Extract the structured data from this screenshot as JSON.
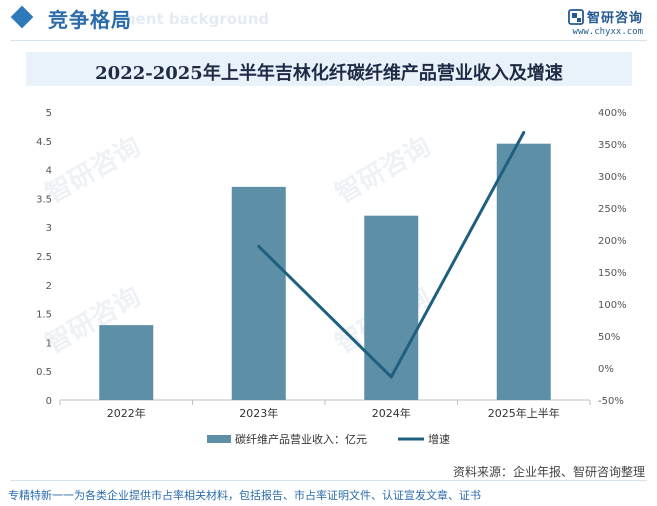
{
  "header": {
    "title": "竞争格局",
    "watermark": "ment background",
    "brand_name": "智研咨询",
    "brand_url": "www.chyxx.com"
  },
  "chart_data": {
    "type": "bar+line",
    "title": "2022-2025年上半年吉林化纤碳纤维产品营业收入及增速",
    "categories": [
      "2022年",
      "2023年",
      "2024年",
      "2025年上半年"
    ],
    "series": [
      {
        "name": "碳纤维产品营业收入：亿元",
        "type": "bar",
        "axis": "left",
        "values": [
          1.3,
          3.7,
          3.2,
          4.45
        ]
      },
      {
        "name": "增速",
        "type": "line",
        "axis": "right",
        "values": [
          null,
          190,
          -14,
          368
        ]
      }
    ],
    "left_axis": {
      "ylim": [
        0,
        5
      ],
      "ticks": [
        "0",
        "0.5",
        "1",
        "1.5",
        "2",
        "2.5",
        "3",
        "3.5",
        "4",
        "4.5",
        "5"
      ]
    },
    "right_axis": {
      "ylim": [
        -50,
        400
      ],
      "ticks": [
        "-50%",
        "0%",
        "50%",
        "100%",
        "150%",
        "200%",
        "250%",
        "300%",
        "350%",
        "400%"
      ]
    },
    "legend_position": "bottom",
    "grid": false,
    "colors": {
      "bar": "#5d8fa6",
      "line": "#1f5f80"
    }
  },
  "source": "资料来源：企业年报、智研咨询整理",
  "footer": "专精特新一一为各类企业提供市占率相关材料，包括报告、市占率证明文件、认证宣发文章、证书",
  "watermark_text": "智研咨询"
}
